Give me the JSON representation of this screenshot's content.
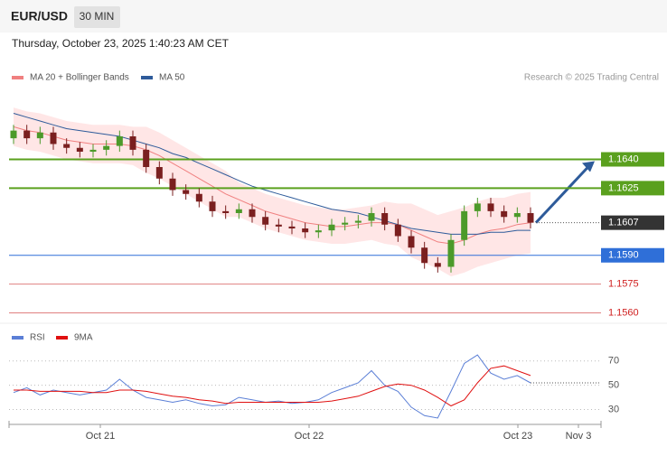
{
  "header": {
    "symbol": "EUR/USD",
    "interval": "30 MIN",
    "datetime": "Thursday, October 23, 2025 1:40:23 AM CET"
  },
  "chart_data": [
    {
      "type": "candlestick",
      "source": "Research © 2025 Trading Central",
      "ylim": [
        1.1556,
        1.1676
      ],
      "up_color": "#4c9a2a",
      "down_color": "#7a1f1f",
      "open": [
        1.1651,
        1.1655,
        1.1651,
        1.1654,
        1.1648,
        1.1646,
        1.1644,
        1.1645,
        1.1647,
        1.1652,
        1.1645,
        1.1636,
        1.163,
        1.1624,
        1.1622,
        1.1618,
        1.1613,
        1.1612,
        1.1614,
        1.161,
        1.1606,
        1.1605,
        1.1604,
        1.1602,
        1.1603,
        1.1606,
        1.1607,
        1.1608,
        1.1612,
        1.1606,
        1.16,
        1.1594,
        1.1586,
        1.1584,
        1.1598,
        1.1613,
        1.1617,
        1.1613,
        1.161,
        1.1612
      ],
      "high": [
        1.1658,
        1.1658,
        1.1657,
        1.1657,
        1.1651,
        1.1649,
        1.1648,
        1.165,
        1.1655,
        1.1655,
        1.1648,
        1.1639,
        1.1633,
        1.1627,
        1.1625,
        1.1621,
        1.1616,
        1.1617,
        1.1617,
        1.1613,
        1.1609,
        1.1608,
        1.1607,
        1.1606,
        1.1609,
        1.161,
        1.1611,
        1.1615,
        1.1615,
        1.1609,
        1.1603,
        1.1597,
        1.1589,
        1.1601,
        1.1616,
        1.162,
        1.162,
        1.1616,
        1.1615,
        1.1615
      ],
      "low": [
        1.1648,
        1.1648,
        1.1648,
        1.1645,
        1.1643,
        1.1641,
        1.1641,
        1.1642,
        1.1644,
        1.1642,
        1.1633,
        1.1627,
        1.1621,
        1.1619,
        1.1615,
        1.161,
        1.1609,
        1.1609,
        1.1607,
        1.1603,
        1.1602,
        1.1601,
        1.1599,
        1.1599,
        1.16,
        1.1603,
        1.1604,
        1.1605,
        1.1603,
        1.1597,
        1.1591,
        1.1583,
        1.1581,
        1.1581,
        1.1595,
        1.161,
        1.161,
        1.1607,
        1.1607,
        1.1604
      ],
      "close": [
        1.1655,
        1.1651,
        1.1654,
        1.1648,
        1.1646,
        1.1644,
        1.1645,
        1.1647,
        1.1652,
        1.1645,
        1.1636,
        1.163,
        1.1624,
        1.1622,
        1.1618,
        1.1613,
        1.1612,
        1.1614,
        1.161,
        1.1606,
        1.1605,
        1.1604,
        1.1602,
        1.1603,
        1.1606,
        1.1607,
        1.1608,
        1.1612,
        1.1606,
        1.16,
        1.1594,
        1.1586,
        1.1584,
        1.1598,
        1.1613,
        1.1617,
        1.1613,
        1.161,
        1.1612,
        1.1607
      ],
      "overlays": [
        {
          "name": "MA 20 + Bollinger Bands",
          "color": "#f08080",
          "band_color": "#ffd6d6",
          "values": [
            1.1657,
            1.1655,
            1.1654,
            1.1652,
            1.165,
            1.1649,
            1.1648,
            1.1648,
            1.1648,
            1.1647,
            1.1645,
            1.1642,
            1.1638,
            1.1634,
            1.163,
            1.1626,
            1.1622,
            1.1619,
            1.1616,
            1.1613,
            1.1611,
            1.1609,
            1.1607,
            1.1606,
            1.1605,
            1.1605,
            1.1606,
            1.1607,
            1.1607,
            1.1606,
            1.1603,
            1.16,
            1.1597,
            1.1596,
            1.1598,
            1.1601,
            1.1603,
            1.1604,
            1.1606,
            1.1607
          ],
          "upper": [
            1.1667,
            1.1665,
            1.1664,
            1.1662,
            1.166,
            1.1659,
            1.1658,
            1.1658,
            1.1658,
            1.1657,
            1.1657,
            1.1654,
            1.165,
            1.1646,
            1.1642,
            1.1638,
            1.1634,
            1.1628,
            1.1625,
            1.1622,
            1.162,
            1.1618,
            1.1616,
            1.1615,
            1.1614,
            1.1614,
            1.1615,
            1.1616,
            1.1618,
            1.1617,
            1.1617,
            1.1614,
            1.1611,
            1.1613,
            1.1615,
            1.1618,
            1.162,
            1.162,
            1.1622,
            1.1623
          ],
          "lower": [
            1.1647,
            1.1645,
            1.1644,
            1.1642,
            1.164,
            1.1639,
            1.1638,
            1.1638,
            1.1638,
            1.1637,
            1.1633,
            1.163,
            1.1626,
            1.1622,
            1.1618,
            1.1614,
            1.161,
            1.161,
            1.1607,
            1.1604,
            1.1602,
            1.16,
            1.1598,
            1.1597,
            1.1596,
            1.1596,
            1.1597,
            1.1598,
            1.1596,
            1.1595,
            1.1589,
            1.1586,
            1.1583,
            1.1579,
            1.1581,
            1.1584,
            1.1586,
            1.1588,
            1.159,
            1.1591
          ]
        },
        {
          "name": "MA 50",
          "color": "#2e5b9a",
          "values": [
            1.1664,
            1.1662,
            1.166,
            1.1658,
            1.1656,
            1.1655,
            1.1654,
            1.1653,
            1.1652,
            1.165,
            1.1648,
            1.1646,
            1.1643,
            1.1641,
            1.1638,
            1.1635,
            1.1632,
            1.1629,
            1.1626,
            1.1624,
            1.1622,
            1.162,
            1.1618,
            1.1616,
            1.1614,
            1.1613,
            1.1612,
            1.161,
            1.1608,
            1.1606,
            1.1604,
            1.1603,
            1.1602,
            1.1601,
            1.1601,
            1.1601,
            1.1602,
            1.1602,
            1.1603,
            1.1603
          ]
        }
      ],
      "levels": [
        {
          "value": 1.164,
          "label": "1.1640",
          "color": "#5aa01e",
          "box": true,
          "target": true
        },
        {
          "value": 1.1625,
          "label": "1.1625",
          "color": "#5aa01e",
          "box": true,
          "target": false
        },
        {
          "value": 1.1607,
          "label": "1.1607",
          "color": "#333333",
          "box": true,
          "target": false
        },
        {
          "value": 1.159,
          "label": "1.1590",
          "color": "#2f6fd8",
          "box": true,
          "target": false
        },
        {
          "value": 1.1575,
          "label": "1.1575",
          "color": "#e08080",
          "box": false,
          "target": false
        },
        {
          "value": 1.156,
          "label": "1.1560",
          "color": "#e08080",
          "box": false,
          "target": false
        }
      ]
    },
    {
      "type": "line",
      "ylim": [
        20,
        81
      ],
      "yticks": [
        30,
        50,
        70
      ],
      "xlabels": [
        "Oct 21",
        "Oct 22",
        "Oct 23",
        "Nov 3"
      ],
      "series": [
        {
          "name": "RSI",
          "color": "#5b7fd6",
          "values": [
            44,
            48,
            42,
            46,
            44,
            42,
            44,
            46,
            55,
            46,
            40,
            38,
            36,
            38,
            35,
            33,
            34,
            40,
            38,
            36,
            37,
            35,
            36,
            38,
            44,
            48,
            52,
            62,
            50,
            45,
            32,
            25,
            23,
            45,
            68,
            75,
            60,
            55,
            58,
            52
          ]
        },
        {
          "name": "9MA",
          "color": "#e01010",
          "values": [
            46,
            46,
            45,
            45,
            45,
            45,
            44,
            44,
            46,
            46,
            45,
            43,
            41,
            40,
            38,
            37,
            35,
            36,
            36,
            36,
            36,
            36,
            36,
            36,
            37,
            39,
            41,
            45,
            49,
            51,
            50,
            46,
            40,
            33,
            38,
            52,
            64,
            66,
            62,
            58
          ]
        }
      ]
    }
  ]
}
